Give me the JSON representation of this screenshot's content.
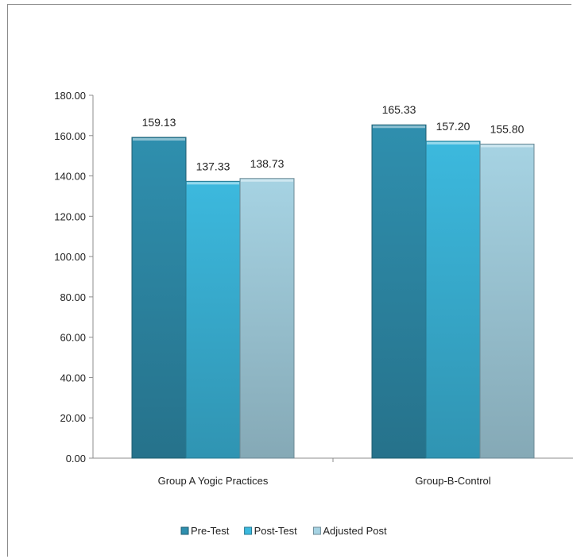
{
  "chart_data": {
    "type": "bar",
    "categories": [
      "Group A Yogic Practices",
      "Group-B-Control"
    ],
    "series": [
      {
        "name": "Pre-Test",
        "values": [
          159.13,
          165.33
        ],
        "color": "#2f8fae"
      },
      {
        "name": "Post-Test",
        "values": [
          137.33,
          157.2
        ],
        "color": "#3cb9de"
      },
      {
        "name": "Adjusted Post",
        "values": [
          138.73,
          155.8
        ],
        "color": "#a6d3e3"
      }
    ],
    "ylim": [
      0,
      180
    ],
    "yticks": [
      "0.00",
      "20.00",
      "40.00",
      "60.00",
      "80.00",
      "100.00",
      "120.00",
      "140.00",
      "160.00",
      "180.00"
    ],
    "data_labels": [
      [
        "159.13",
        "165.33"
      ],
      [
        "137.33",
        "157.20"
      ],
      [
        "138.73",
        "155.80"
      ]
    ],
    "legend_position": "bottom",
    "grid": false
  }
}
